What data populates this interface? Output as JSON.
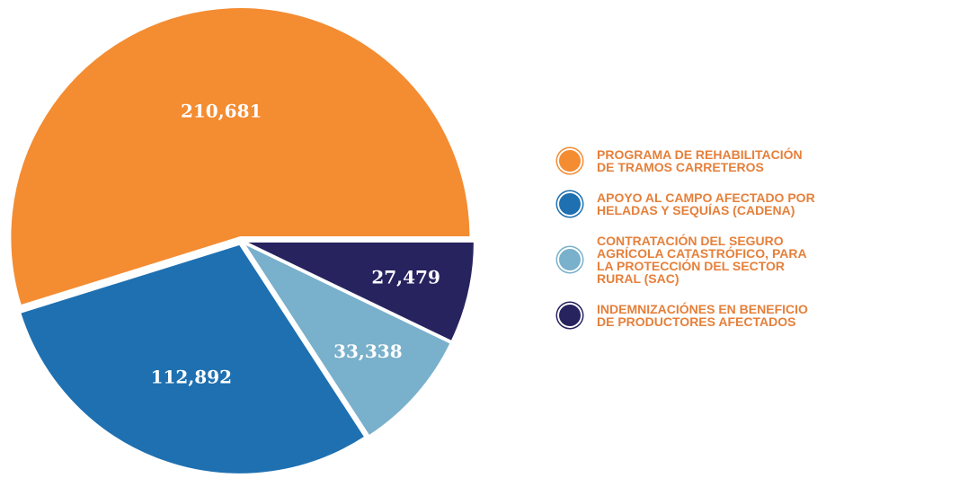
{
  "chart_data": {
    "type": "pie",
    "series": [
      {
        "name": "PROGRAMA DE REHABILITACIÓN DE TRAMOS CARRETEROS",
        "color": "#f48c32",
        "values": [
          210681
        ],
        "value_labels": [
          "210,681"
        ]
      },
      {
        "name": "APOYO AL CAMPO AFECTADO POR HELADAS Y SEQUÍAS (CADENA)",
        "color": "#1e70b1",
        "values": [
          112892
        ],
        "value_labels": [
          "112,892"
        ]
      },
      {
        "name": "CONTRATACIÓN DEL SEGURO AGRÍCOLA CATASTRÓFICO, PARA LA PROTECCIÓN DEL SECTOR RURAL (SAC)",
        "color": "#79b0cb",
        "values": [
          33338
        ],
        "value_labels": [
          "33,338"
        ]
      },
      {
        "name": "INDEMNIZACIÓNES EN BENEFICIO DE PRODUCTORES AFECTADOS",
        "color": "#27235f",
        "values": [
          27479
        ],
        "value_labels": [
          "27,479"
        ]
      }
    ]
  }
}
